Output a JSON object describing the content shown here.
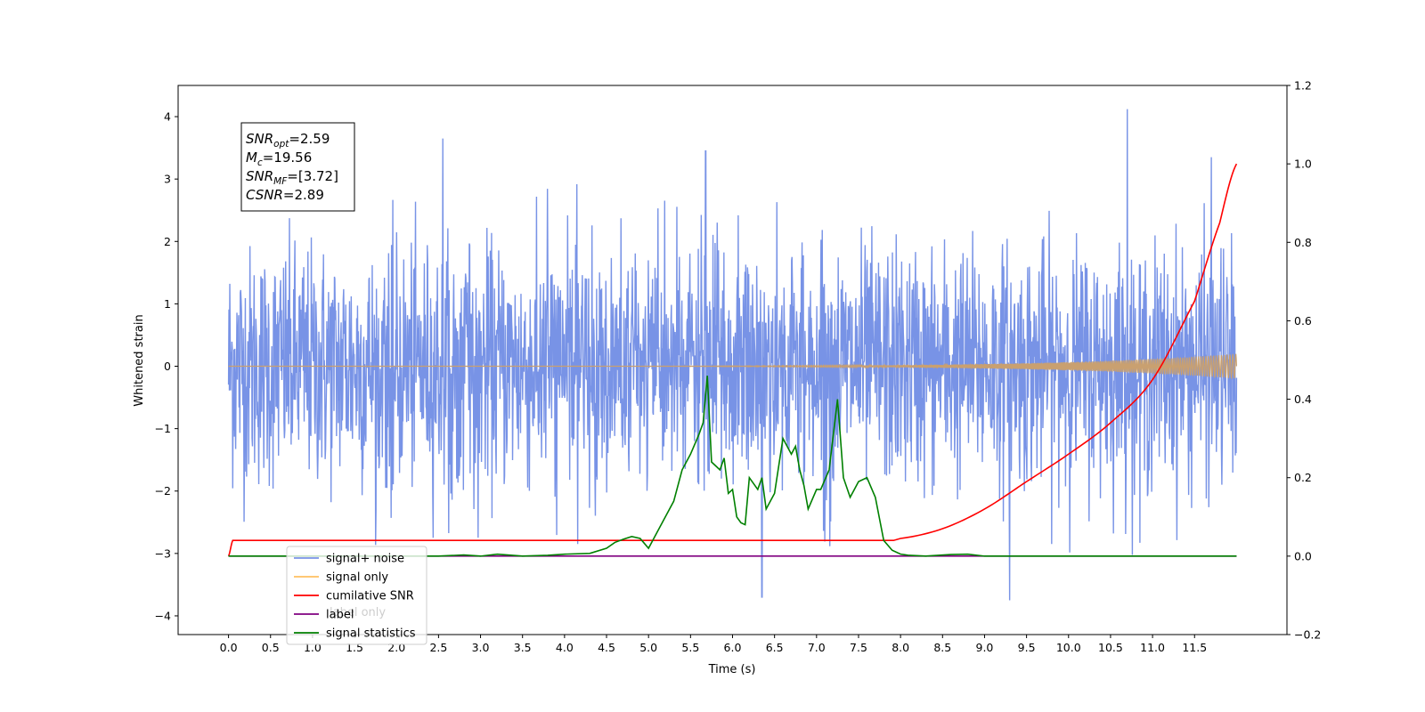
{
  "chart_data": {
    "type": "line",
    "title": "",
    "xlabel": "Time (s)",
    "ylabel": "Whitened strain",
    "ylabel_right": "",
    "xlim": [
      -0.6,
      12.6
    ],
    "ylim": [
      -4.3,
      4.5
    ],
    "ylim_right": [
      -0.2,
      1.2
    ],
    "x_ticks": [
      "0.0",
      "0.5",
      "1.0",
      "1.5",
      "2.0",
      "2.5",
      "3.0",
      "3.5",
      "4.0",
      "4.5",
      "5.0",
      "5.5",
      "6.0",
      "6.5",
      "7.0",
      "7.5",
      "8.0",
      "8.5",
      "9.0",
      "9.5",
      "10.0",
      "10.5",
      "11.0",
      "11.5"
    ],
    "x_tick_values": [
      0,
      0.5,
      1,
      1.5,
      2,
      2.5,
      3,
      3.5,
      4,
      4.5,
      5,
      5.5,
      6,
      6.5,
      7,
      7.5,
      8,
      8.5,
      9,
      9.5,
      10,
      10.5,
      11,
      11.5
    ],
    "y_ticks": [
      "−4",
      "−3",
      "−2",
      "−1",
      "0",
      "1",
      "2",
      "3",
      "4"
    ],
    "y_tick_values": [
      -4,
      -3,
      -2,
      -1,
      0,
      1,
      2,
      3,
      4
    ],
    "y_ticks_right": [
      "−0.2",
      "0.0",
      "0.2",
      "0.4",
      "0.6",
      "0.8",
      "1.0",
      "1.2"
    ],
    "y_tick_values_right": [
      -0.2,
      0,
      0.2,
      0.4,
      0.6,
      0.8,
      1.0,
      1.2
    ],
    "grid": false,
    "legend_placement": "lower-left",
    "legend": [
      {
        "label": "signal+ noise",
        "color": "#7893e6"
      },
      {
        "label": "signal only",
        "color": "#ffc060"
      },
      {
        "label": "cumilative SNR",
        "color": "#ff0000"
      },
      {
        "label": "label",
        "color": "#800080"
      },
      {
        "label": "signal statistics",
        "color": "#008000"
      }
    ],
    "hidden_legend_text": [
      "label only"
    ],
    "annotation": {
      "lines": [
        {
          "main": "SNR",
          "sub": "opt",
          "rest": "=2.59"
        },
        {
          "main": "M",
          "sub": "c",
          "rest": "=19.56"
        },
        {
          "main": "SNR",
          "sub": "MF",
          "rest": "=[3.72]"
        },
        {
          "main": "CSNR",
          "sub": "",
          "rest": "=2.89"
        }
      ]
    },
    "series": [
      {
        "name": "signal+ noise",
        "axis": "left",
        "style": "noise",
        "color": "#7893e6",
        "x_range": [
          0,
          12.0
        ],
        "sigma": 1.0,
        "sample_count": 2400,
        "notable_peaks": [
          {
            "x": 2.55,
            "y": 3.65
          },
          {
            "x": 5.68,
            "y": 3.45
          },
          {
            "x": 10.7,
            "y": 4.12
          },
          {
            "x": 11.7,
            "y": 3.35
          },
          {
            "x": 9.3,
            "y": -3.75
          },
          {
            "x": 6.35,
            "y": -3.7
          }
        ]
      },
      {
        "name": "signal only",
        "axis": "left",
        "style": "chirp",
        "color": "#ffc060",
        "x_range": [
          0,
          12.0
        ],
        "amplitude_end": 0.2
      },
      {
        "name": "cumilative SNR",
        "axis": "right",
        "color": "#ff0000",
        "x": [
          0,
          0.05,
          1,
          2,
          3,
          4,
          5,
          6,
          7,
          8,
          8.5,
          9,
          9.5,
          10,
          10.5,
          11,
          11.5,
          11.8,
          12.0
        ],
        "values": [
          0.0,
          0.04,
          0.04,
          0.04,
          0.04,
          0.04,
          0.04,
          0.04,
          0.04,
          0.045,
          0.07,
          0.12,
          0.19,
          0.26,
          0.34,
          0.45,
          0.65,
          0.85,
          1.0
        ]
      },
      {
        "name": "label",
        "axis": "right",
        "color": "#800080",
        "x": [
          0,
          12.0
        ],
        "values": [
          0.0,
          0.0
        ]
      },
      {
        "name": "signal statistics",
        "axis": "right",
        "color": "#008000",
        "x": [
          0,
          2.5,
          2.8,
          3.0,
          3.2,
          3.5,
          3.8,
          4.0,
          4.3,
          4.5,
          4.6,
          4.7,
          4.8,
          4.9,
          5.0,
          5.1,
          5.2,
          5.3,
          5.4,
          5.5,
          5.6,
          5.65,
          5.7,
          5.75,
          5.8,
          5.85,
          5.9,
          5.95,
          6.0,
          6.05,
          6.1,
          6.15,
          6.2,
          6.3,
          6.35,
          6.4,
          6.45,
          6.5,
          6.6,
          6.7,
          6.75,
          6.8,
          6.85,
          6.9,
          7.0,
          7.05,
          7.15,
          7.25,
          7.32,
          7.4,
          7.45,
          7.5,
          7.6,
          7.7,
          7.8,
          7.9,
          8.0,
          8.1,
          8.3,
          8.6,
          8.8,
          9.0,
          9.3,
          10,
          11,
          12.0
        ],
        "values": [
          0.0,
          0.0,
          0.003,
          0.0,
          0.005,
          0.0,
          0.002,
          0.005,
          0.007,
          0.02,
          0.035,
          0.043,
          0.05,
          0.045,
          0.02,
          0.06,
          0.1,
          0.14,
          0.22,
          0.26,
          0.31,
          0.34,
          0.46,
          0.24,
          0.23,
          0.22,
          0.25,
          0.16,
          0.17,
          0.1,
          0.085,
          0.08,
          0.2,
          0.17,
          0.2,
          0.12,
          0.14,
          0.16,
          0.3,
          0.26,
          0.28,
          0.22,
          0.18,
          0.12,
          0.17,
          0.17,
          0.22,
          0.4,
          0.2,
          0.15,
          0.17,
          0.19,
          0.2,
          0.15,
          0.04,
          0.015,
          0.005,
          0.002,
          0.0,
          0.004,
          0.005,
          0.0,
          0.0,
          0.0,
          0.0,
          0.0
        ]
      }
    ]
  }
}
